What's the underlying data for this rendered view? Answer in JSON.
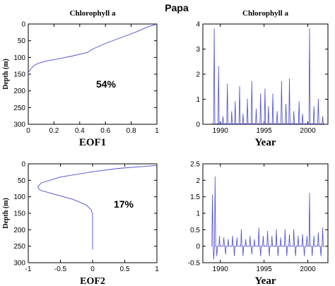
{
  "page_title": "Papa",
  "colors": {
    "line": "#4a4ad8",
    "axis": "#000000",
    "background": "#ffffff"
  },
  "chart_data": [
    {
      "id": "eof1",
      "type": "line",
      "title": "Chlorophyll a",
      "xlabel": "EOF1",
      "ylabel": "Depth (m)",
      "annotation": "54%",
      "xlim": [
        0,
        1
      ],
      "ylim": [
        0,
        300
      ],
      "y_reversed": true,
      "xticks": [
        0,
        0.2,
        0.4,
        0.6,
        0.8,
        1
      ],
      "xtick_labels": [
        "0",
        "0.2",
        "0.4",
        "0.6",
        "0.8",
        "1"
      ],
      "yticks": [
        0,
        50,
        100,
        150,
        200,
        250,
        300
      ],
      "ytick_labels": [
        "0",
        "50",
        "100",
        "150",
        "200",
        "250",
        "300"
      ],
      "series": [
        {
          "x": [
            1.0,
            0.92,
            0.85,
            0.74,
            0.6,
            0.5,
            0.46,
            0.35,
            0.25,
            0.15,
            0.08,
            0.04,
            0.02,
            0.0,
            0.0
          ],
          "y": [
            0,
            10,
            22,
            38,
            58,
            75,
            85,
            95,
            103,
            110,
            117,
            125,
            135,
            145,
            150
          ]
        }
      ]
    },
    {
      "id": "ts1",
      "type": "line",
      "title": "Chlorophyll a",
      "xlabel": "Year",
      "ylabel": "",
      "xlim": [
        1988,
        2002.3
      ],
      "ylim": [
        0,
        4
      ],
      "xticks": [
        1990,
        1995,
        2000
      ],
      "xtick_labels": [
        "1990",
        "1995",
        "2000"
      ],
      "yticks": [
        0,
        1,
        2,
        3,
        4
      ],
      "ytick_labels": [
        "0",
        "1",
        "2",
        "3",
        "4"
      ],
      "peaks": [
        {
          "x": 1989.3,
          "y": 3.8
        },
        {
          "x": 1989.8,
          "y": 2.3
        },
        {
          "x": 1990.3,
          "y": 0.3
        },
        {
          "x": 1990.8,
          "y": 1.6
        },
        {
          "x": 1991.3,
          "y": 0.5
        },
        {
          "x": 1991.7,
          "y": 0.9
        },
        {
          "x": 1992.2,
          "y": 1.5
        },
        {
          "x": 1992.6,
          "y": 0.4
        },
        {
          "x": 1993.1,
          "y": 1.0
        },
        {
          "x": 1993.6,
          "y": 1.7
        },
        {
          "x": 1994.1,
          "y": 0.6
        },
        {
          "x": 1994.6,
          "y": 1.2
        },
        {
          "x": 1995.1,
          "y": 1.4
        },
        {
          "x": 1995.5,
          "y": 0.7
        },
        {
          "x": 1996.0,
          "y": 1.2
        },
        {
          "x": 1996.5,
          "y": 0.5
        },
        {
          "x": 1997.0,
          "y": 1.7
        },
        {
          "x": 1997.5,
          "y": 0.8
        },
        {
          "x": 1997.9,
          "y": 1.8
        },
        {
          "x": 1998.4,
          "y": 0.5
        },
        {
          "x": 1999.0,
          "y": 0.9
        },
        {
          "x": 1999.4,
          "y": 0.4
        },
        {
          "x": 2000.2,
          "y": 3.8
        },
        {
          "x": 2000.7,
          "y": 0.7
        },
        {
          "x": 2001.2,
          "y": 1.0
        },
        {
          "x": 2001.7,
          "y": 0.3
        }
      ]
    },
    {
      "id": "eof2",
      "type": "line",
      "title": "",
      "xlabel": "EOF2",
      "ylabel": "Depth (m)",
      "annotation": "17%",
      "xlim": [
        -1,
        1
      ],
      "ylim": [
        0,
        300
      ],
      "y_reversed": true,
      "xticks": [
        -1,
        -0.5,
        0,
        0.5,
        1
      ],
      "xtick_labels": [
        "-1",
        "-0.5",
        "0",
        "0.5",
        "1"
      ],
      "yticks": [
        0,
        50,
        100,
        150,
        200,
        250,
        300
      ],
      "ytick_labels": [
        "0",
        "50",
        "100",
        "150",
        "200",
        "250",
        "300"
      ],
      "series": [
        {
          "x": [
            1.0,
            0.8,
            0.4,
            0.0,
            -0.5,
            -0.8,
            -0.85,
            -0.82,
            -0.6,
            -0.3,
            -0.1,
            -0.02,
            0.0,
            0.0
          ],
          "y": [
            5,
            8,
            14,
            24,
            40,
            58,
            70,
            80,
            92,
            108,
            125,
            140,
            155,
            260
          ]
        }
      ]
    },
    {
      "id": "ts2",
      "type": "line",
      "title": "",
      "xlabel": "Year",
      "ylabel": "",
      "xlim": [
        1988,
        2002.3
      ],
      "ylim": [
        -0.5,
        2.5
      ],
      "xticks": [
        1990,
        1995,
        2000
      ],
      "xtick_labels": [
        "1990",
        "1995",
        "2000"
      ],
      "yticks": [
        -0.5,
        0,
        0.5,
        1,
        1.5,
        2,
        2.5
      ],
      "ytick_labels": [
        "-0.5",
        "0",
        "0.5",
        "1",
        "1.5",
        "2",
        "2.5"
      ],
      "peaks": [
        {
          "x": 1989.1,
          "y": 1.55
        },
        {
          "x": 1989.4,
          "y": 2.1
        },
        {
          "x": 1989.9,
          "y": 0.3
        },
        {
          "x": 1990.4,
          "y": 0.25
        },
        {
          "x": 1990.9,
          "y": 0.2
        },
        {
          "x": 1991.4,
          "y": 0.3
        },
        {
          "x": 1991.9,
          "y": 0.25
        },
        {
          "x": 1992.4,
          "y": 0.5
        },
        {
          "x": 1992.9,
          "y": 0.2
        },
        {
          "x": 1993.4,
          "y": 0.3
        },
        {
          "x": 1993.9,
          "y": 0.2
        },
        {
          "x": 1994.4,
          "y": 0.55
        },
        {
          "x": 1994.9,
          "y": 0.3
        },
        {
          "x": 1995.4,
          "y": 0.45
        },
        {
          "x": 1995.9,
          "y": 0.3
        },
        {
          "x": 1996.4,
          "y": 0.5
        },
        {
          "x": 1996.9,
          "y": 0.25
        },
        {
          "x": 1997.4,
          "y": 0.5
        },
        {
          "x": 1997.9,
          "y": 0.35
        },
        {
          "x": 1998.4,
          "y": 0.5
        },
        {
          "x": 1998.9,
          "y": 0.3
        },
        {
          "x": 1999.4,
          "y": 0.35
        },
        {
          "x": 1999.9,
          "y": 0.3
        },
        {
          "x": 2000.2,
          "y": 1.6
        },
        {
          "x": 2000.7,
          "y": 0.3
        },
        {
          "x": 2001.2,
          "y": 0.4
        },
        {
          "x": 2001.7,
          "y": 0.55
        }
      ],
      "troughs": [
        {
          "x": 1989.25,
          "y": -0.4
        },
        {
          "x": 1989.6,
          "y": -0.3
        },
        {
          "x": 1990.6,
          "y": -0.25
        },
        {
          "x": 1991.6,
          "y": -0.3
        },
        {
          "x": 1992.6,
          "y": -0.3
        },
        {
          "x": 1993.6,
          "y": -0.25
        },
        {
          "x": 1994.6,
          "y": -0.3
        },
        {
          "x": 1995.6,
          "y": -0.3
        },
        {
          "x": 1996.6,
          "y": -0.3
        },
        {
          "x": 1997.6,
          "y": -0.3
        },
        {
          "x": 1998.6,
          "y": -0.3
        },
        {
          "x": 1999.6,
          "y": -0.3
        },
        {
          "x": 2000.5,
          "y": -0.3
        },
        {
          "x": 2001.5,
          "y": -0.3
        }
      ]
    }
  ]
}
